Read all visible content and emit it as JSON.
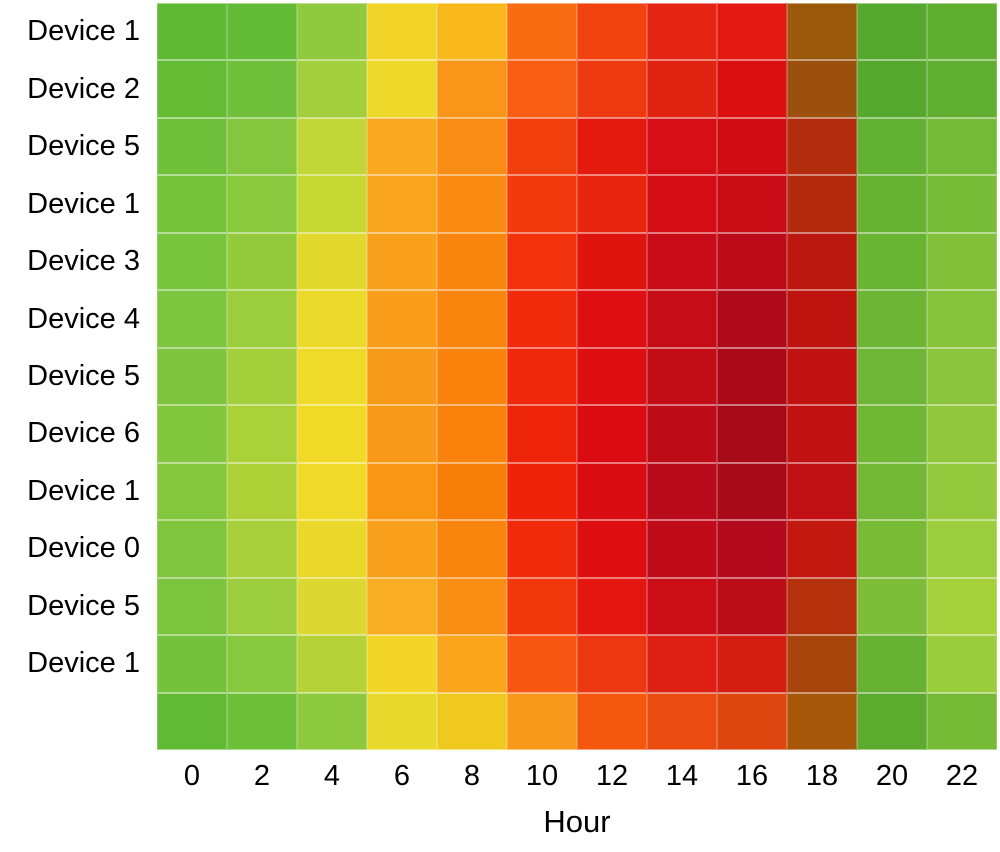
{
  "figure": {
    "background": "#ffffff",
    "text_color": "#000000",
    "gridline_color": "rgba(255,255,255,0.45)"
  },
  "chart_data": {
    "type": "heatmap",
    "title": "",
    "xlabel": "Hour",
    "ylabel": "",
    "legend_position": "none",
    "x_ticks": [
      "0",
      "2",
      "4",
      "6",
      "8",
      "10",
      "12",
      "14",
      "16",
      "18",
      "20",
      "22"
    ],
    "y_labels": [
      "Device 1",
      "Device 2",
      "Device 5",
      "Device 1",
      "Device 3",
      "Device 4",
      "Device 5",
      "Device 6",
      "Device 1",
      "Device 0",
      "Device 5",
      "Device 1",
      ""
    ],
    "colormap": {
      "low_color": "#62ba34",
      "mid_color": "#f2d927",
      "high_color": "#ab0917",
      "hour18_blend_color": "#9b5a0b"
    },
    "cell_colors": [
      [
        "#5fb933",
        "#63bb35",
        "#90c83e",
        "#f2d328",
        "#f9b91c",
        "#f96c12",
        "#f04310",
        "#e52513",
        "#e11911",
        "#9b5a0b",
        "#55a82e",
        "#5fae2f"
      ],
      [
        "#66bb35",
        "#6fc03a",
        "#a3cf3d",
        "#eed92b",
        "#f9961a",
        "#f75d13",
        "#ee3a10",
        "#e02311",
        "#db0f10",
        "#9b500d",
        "#57a92e",
        "#60af30"
      ],
      [
        "#6fc03a",
        "#84c73e",
        "#c1d637",
        "#f9a81f",
        "#f98c14",
        "#f23f0e",
        "#e41910",
        "#d60e15",
        "#d00d15",
        "#b32c0d",
        "#62b133",
        "#74ba37"
      ],
      [
        "#76c33c",
        "#8bc93e",
        "#c6d834",
        "#f9a41d",
        "#f98a12",
        "#f23a0e",
        "#e8250f",
        "#d30d13",
        "#c90d17",
        "#b32a0e",
        "#66b334",
        "#79bc38"
      ],
      [
        "#79c43d",
        "#94cb3d",
        "#e2d82e",
        "#f9a01d",
        "#f9860f",
        "#f1320d",
        "#e0140f",
        "#c90d18",
        "#bd0b19",
        "#bb180f",
        "#6ab434",
        "#82c03a"
      ],
      [
        "#7cc53e",
        "#9ccd3c",
        "#ebd92b",
        "#f99d1b",
        "#f9850e",
        "#f02b0c",
        "#de0f10",
        "#c60c17",
        "#b00a1a",
        "#bd1410",
        "#6cb535",
        "#88c33c"
      ],
      [
        "#7fc43e",
        "#a4cf3b",
        "#efd929",
        "#f99b1a",
        "#f9830d",
        "#ef280b",
        "#dc0e10",
        "#c20c16",
        "#ab0917",
        "#c01211",
        "#6eb635",
        "#8cc53d"
      ],
      [
        "#82c63e",
        "#aad03a",
        "#f1d928",
        "#f99919",
        "#f9820c",
        "#ee250a",
        "#da0c11",
        "#bd0b17",
        "#a80916",
        "#c11111",
        "#70b736",
        "#90c73d"
      ],
      [
        "#84c73e",
        "#aed138",
        "#f0d928",
        "#f99714",
        "#f87e0a",
        "#ee230a",
        "#d90c12",
        "#b90a1c",
        "#a90a18",
        "#c11013",
        "#72b836",
        "#94c83d"
      ],
      [
        "#80c53e",
        "#a8d03b",
        "#ead92b",
        "#f9a01c",
        "#f9850e",
        "#ef2b0b",
        "#dd0e10",
        "#c00c1a",
        "#b40a1d",
        "#c2180f",
        "#79bb37",
        "#9ccd3c"
      ],
      [
        "#7cc43d",
        "#9ccd3d",
        "#dcd831",
        "#f9ad22",
        "#f98e15",
        "#f1380d",
        "#e3170f",
        "#cb0d17",
        "#bb0c1a",
        "#b5310c",
        "#7dbd38",
        "#a5d03b"
      ],
      [
        "#74c23c",
        "#86c83e",
        "#b5d339",
        "#f2d527",
        "#f9a61c",
        "#f75713",
        "#ec3810",
        "#dd2013",
        "#d31e11",
        "#a8450c",
        "#68b233",
        "#9acc3b"
      ],
      [
        "#62ba34",
        "#6dbf38",
        "#8cc93e",
        "#e9d92d",
        "#f0c91f",
        "#f9991b",
        "#f4570e",
        "#ea4b10",
        "#de460f",
        "#a6570a",
        "#5cab2e",
        "#76ba36"
      ]
    ]
  }
}
